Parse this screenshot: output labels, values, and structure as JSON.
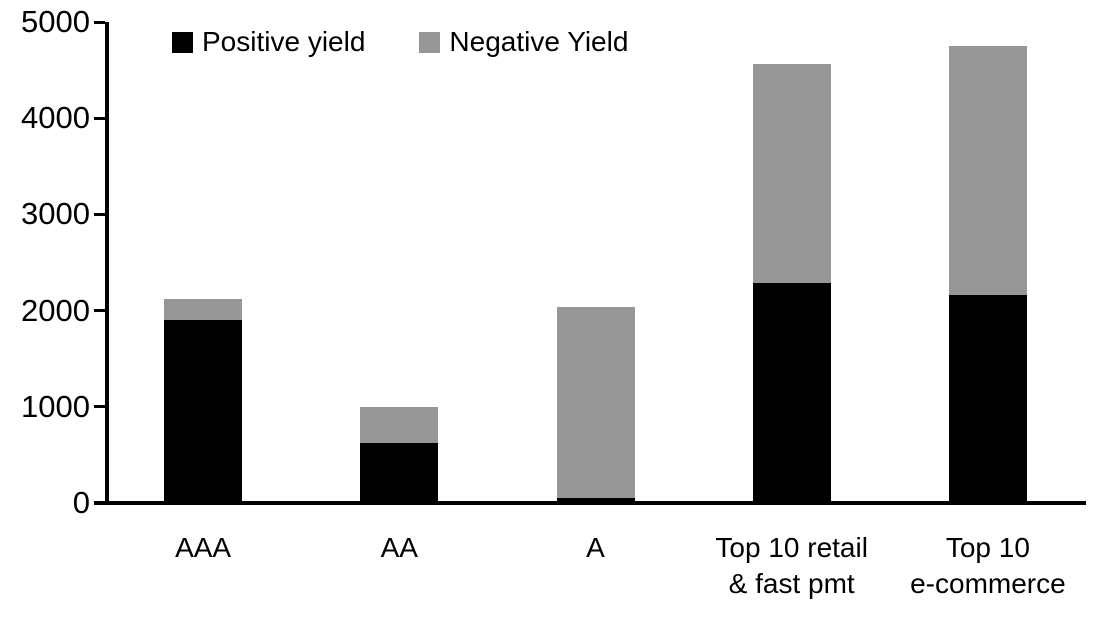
{
  "chart_data": {
    "type": "bar",
    "stacked": true,
    "title": "",
    "xlabel": "",
    "ylabel": "",
    "categories": [
      "AAA",
      "AA",
      "A",
      "Top 10 retail\n& fast pmt",
      "Top 10\ne-commerce"
    ],
    "series": [
      {
        "name": "Positive yield",
        "color": "#000000",
        "values": [
          1900,
          620,
          50,
          2290,
          2160
        ]
      },
      {
        "name": "Negative Yield",
        "color": "#969696",
        "values": [
          220,
          380,
          1990,
          2270,
          2590
        ]
      }
    ],
    "totals": [
      2120,
      1000,
      2040,
      4560,
      4750
    ],
    "ylim": [
      0,
      5000
    ],
    "yticks": [
      0,
      1000,
      2000,
      3000,
      4000,
      5000
    ],
    "legend_position": "top-left",
    "grid": false,
    "background": "#ffffff",
    "axis_color": "#000000"
  }
}
